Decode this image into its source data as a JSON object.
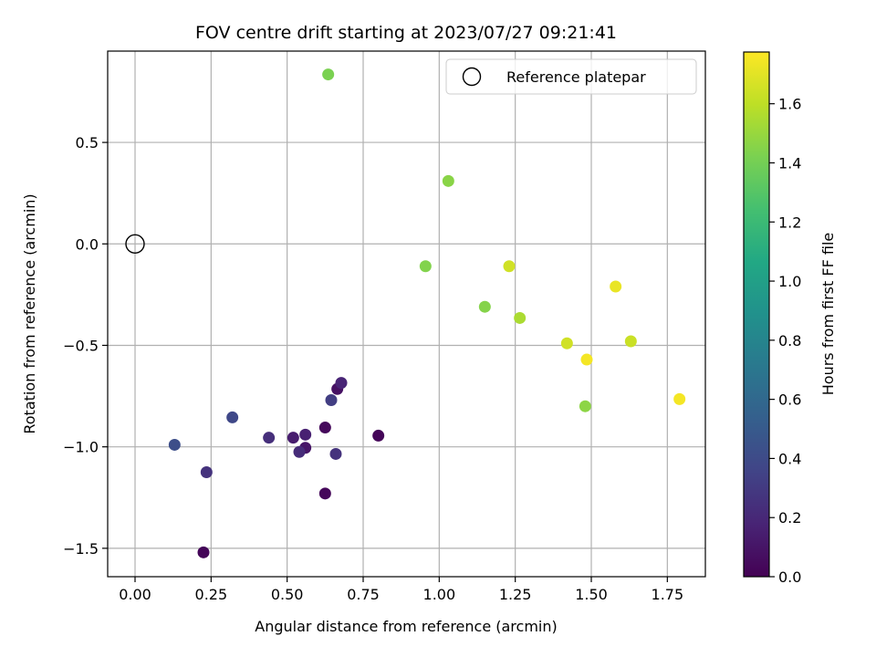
{
  "chart_data": {
    "type": "scatter",
    "title": "FOV centre drift starting at 2023/07/27 09:21:41",
    "xlabel": "Angular distance from reference (arcmin)",
    "ylabel": "Rotation from reference (arcmin)",
    "xlim": [
      -0.09,
      1.875
    ],
    "ylim": [
      -1.64,
      0.95
    ],
    "xticks": [
      0.0,
      0.25,
      0.5,
      0.75,
      1.0,
      1.25,
      1.5,
      1.75
    ],
    "xtick_labels": [
      "0.00",
      "0.25",
      "0.50",
      "0.75",
      "1.00",
      "1.25",
      "1.50",
      "1.75"
    ],
    "yticks": [
      0.5,
      0.0,
      -0.5,
      -1.0,
      -1.5
    ],
    "ytick_labels": [
      "0.5",
      "0.0",
      "−0.5",
      "−1.0",
      "−1.5"
    ],
    "grid": true,
    "legend": {
      "placement": "top-right",
      "entries": [
        {
          "label": "Reference platepar",
          "marker": "open-circle"
        }
      ]
    },
    "reference_point": {
      "x": 0.0,
      "y": 0.0
    },
    "colorbar": {
      "label": "Hours from first FF file",
      "colormap": "viridis",
      "range": [
        0.0,
        1.775
      ],
      "ticks": [
        0.0,
        0.2,
        0.4,
        0.6,
        0.8,
        1.0,
        1.2,
        1.4,
        1.6
      ],
      "tick_labels": [
        "0.0",
        "0.2",
        "0.4",
        "0.6",
        "0.8",
        "1.0",
        "1.2",
        "1.4",
        "1.6"
      ]
    },
    "points": [
      {
        "x": 0.225,
        "y": -1.52,
        "c": 0.02
      },
      {
        "x": 0.625,
        "y": -1.23,
        "c": 0.03
      },
      {
        "x": 0.8,
        "y": -0.945,
        "c": 0.02
      },
      {
        "x": 0.625,
        "y": -0.905,
        "c": 0.04
      },
      {
        "x": 0.665,
        "y": -0.715,
        "c": 0.08
      },
      {
        "x": 0.678,
        "y": -0.685,
        "c": 0.18
      },
      {
        "x": 0.56,
        "y": -1.005,
        "c": 0.1
      },
      {
        "x": 0.56,
        "y": -0.94,
        "c": 0.16
      },
      {
        "x": 0.52,
        "y": -0.955,
        "c": 0.14
      },
      {
        "x": 0.54,
        "y": -1.025,
        "c": 0.22
      },
      {
        "x": 0.66,
        "y": -1.035,
        "c": 0.26
      },
      {
        "x": 0.44,
        "y": -0.955,
        "c": 0.24
      },
      {
        "x": 0.235,
        "y": -1.125,
        "c": 0.26
      },
      {
        "x": 0.645,
        "y": -0.77,
        "c": 0.32
      },
      {
        "x": 0.32,
        "y": -0.855,
        "c": 0.38
      },
      {
        "x": 0.13,
        "y": -0.99,
        "c": 0.42
      },
      {
        "x": 0.635,
        "y": 0.835,
        "c": 1.42
      },
      {
        "x": 1.03,
        "y": 0.31,
        "c": 1.46
      },
      {
        "x": 0.955,
        "y": -0.11,
        "c": 1.44
      },
      {
        "x": 1.15,
        "y": -0.31,
        "c": 1.45
      },
      {
        "x": 1.48,
        "y": -0.8,
        "c": 1.47
      },
      {
        "x": 1.265,
        "y": -0.365,
        "c": 1.55
      },
      {
        "x": 1.23,
        "y": -0.11,
        "c": 1.65
      },
      {
        "x": 1.42,
        "y": -0.49,
        "c": 1.65
      },
      {
        "x": 1.63,
        "y": -0.48,
        "c": 1.63
      },
      {
        "x": 1.58,
        "y": -0.21,
        "c": 1.72
      },
      {
        "x": 1.485,
        "y": -0.57,
        "c": 1.75
      },
      {
        "x": 1.79,
        "y": -0.765,
        "c": 1.75
      }
    ]
  }
}
